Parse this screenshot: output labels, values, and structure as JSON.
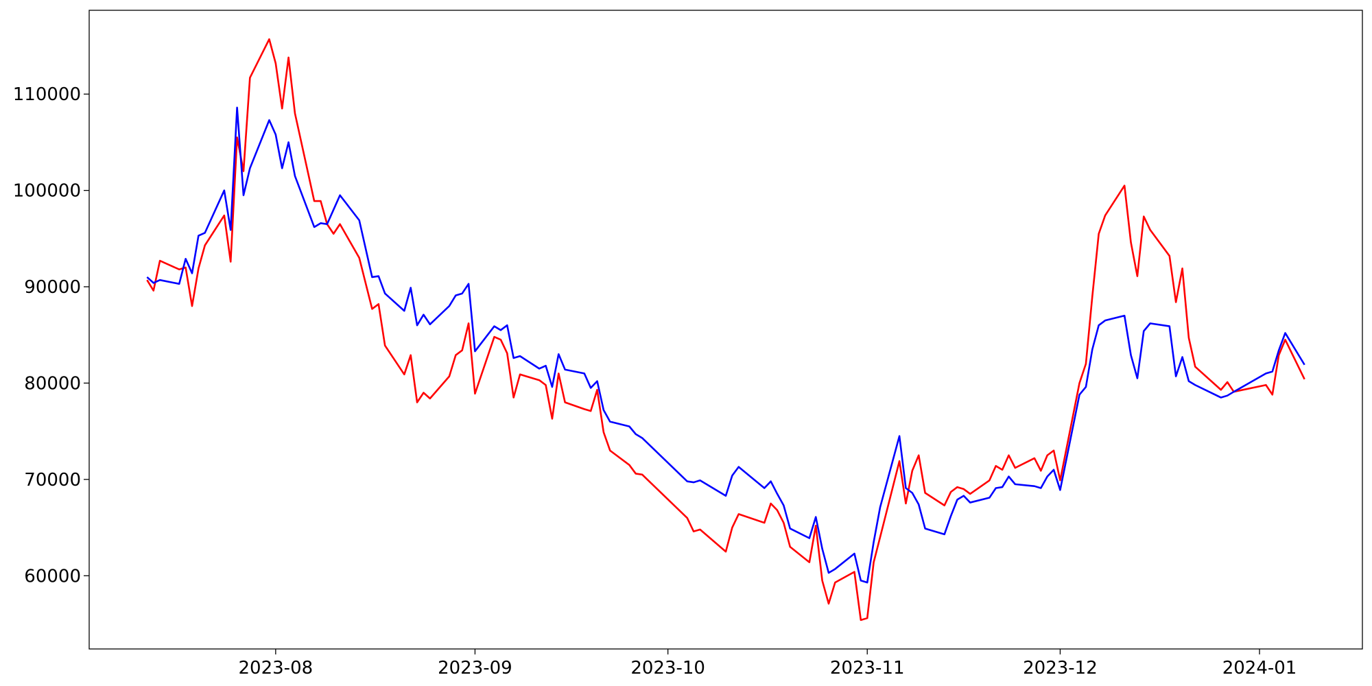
{
  "chart_data": {
    "type": "line",
    "x": [
      "2023-07-12",
      "2023-07-13",
      "2023-07-14",
      "2023-07-17",
      "2023-07-18",
      "2023-07-19",
      "2023-07-20",
      "2023-07-21",
      "2023-07-24",
      "2023-07-25",
      "2023-07-26",
      "2023-07-27",
      "2023-07-28",
      "2023-07-31",
      "2023-08-01",
      "2023-08-02",
      "2023-08-03",
      "2023-08-04",
      "2023-08-07",
      "2023-08-08",
      "2023-08-09",
      "2023-08-10",
      "2023-08-11",
      "2023-08-14",
      "2023-08-16",
      "2023-08-17",
      "2023-08-18",
      "2023-08-21",
      "2023-08-22",
      "2023-08-23",
      "2023-08-24",
      "2023-08-25",
      "2023-08-28",
      "2023-08-29",
      "2023-08-30",
      "2023-08-31",
      "2023-09-01",
      "2023-09-04",
      "2023-09-05",
      "2023-09-06",
      "2023-09-07",
      "2023-09-08",
      "2023-09-11",
      "2023-09-12",
      "2023-09-13",
      "2023-09-14",
      "2023-09-15",
      "2023-09-18",
      "2023-09-19",
      "2023-09-20",
      "2023-09-21",
      "2023-09-22",
      "2023-09-25",
      "2023-09-26",
      "2023-09-27",
      "2023-10-04",
      "2023-10-05",
      "2023-10-06",
      "2023-10-10",
      "2023-10-11",
      "2023-10-12",
      "2023-10-16",
      "2023-10-17",
      "2023-10-18",
      "2023-10-19",
      "2023-10-20",
      "2023-10-23",
      "2023-10-24",
      "2023-10-25",
      "2023-10-26",
      "2023-10-27",
      "2023-10-30",
      "2023-10-31",
      "2023-11-01",
      "2023-11-02",
      "2023-11-03",
      "2023-11-06",
      "2023-11-07",
      "2023-11-08",
      "2023-11-09",
      "2023-11-10",
      "2023-11-13",
      "2023-11-14",
      "2023-11-15",
      "2023-11-16",
      "2023-11-17",
      "2023-11-20",
      "2023-11-21",
      "2023-11-22",
      "2023-11-23",
      "2023-11-24",
      "2023-11-27",
      "2023-11-28",
      "2023-11-29",
      "2023-11-30",
      "2023-12-01",
      "2023-12-04",
      "2023-12-05",
      "2023-12-06",
      "2023-12-07",
      "2023-12-08",
      "2023-12-11",
      "2023-12-12",
      "2023-12-13",
      "2023-12-14",
      "2023-12-15",
      "2023-12-18",
      "2023-12-19",
      "2023-12-20",
      "2023-12-21",
      "2023-12-22",
      "2023-12-26",
      "2023-12-27",
      "2023-12-28",
      "2024-01-02",
      "2024-01-03",
      "2024-01-04",
      "2024-01-05",
      "2024-01-08"
    ],
    "series": [
      {
        "color": "#0000ff",
        "values": [
          91000,
          90400,
          90700,
          90300,
          92900,
          91400,
          95300,
          95600,
          100000,
          95900,
          108600,
          99500,
          102300,
          107300,
          105800,
          102300,
          105000,
          101500,
          96200,
          96600,
          96500,
          98000,
          99500,
          96900,
          91000,
          91100,
          89300,
          87500,
          89900,
          86000,
          87100,
          86100,
          88000,
          89100,
          89300,
          90300,
          83300,
          85900,
          85500,
          86000,
          82600,
          82800,
          81500,
          81800,
          79600,
          83000,
          81400,
          81000,
          79500,
          80200,
          77200,
          76000,
          75500,
          74700,
          74300,
          69800,
          69700,
          69900,
          68300,
          70400,
          71300,
          69100,
          69800,
          68500,
          67300,
          64900,
          63900,
          66100,
          62800,
          60300,
          60700,
          62300,
          59500,
          59300,
          63500,
          67100,
          74500,
          69100,
          68600,
          67400,
          64900,
          64300,
          66200,
          67900,
          68300,
          67600,
          68100,
          69100,
          69200,
          70300,
          69500,
          69300,
          69100,
          70300,
          71000,
          68900,
          78800,
          79600,
          83500,
          86000,
          86500,
          87000,
          82900,
          80500,
          85400,
          86200,
          85900,
          80700,
          82700,
          80200,
          79800,
          78500,
          78700,
          79100,
          81000,
          81200,
          83400,
          85200,
          81900
        ]
      },
      {
        "color": "#ff0000",
        "values": [
          90700,
          89600,
          92700,
          91800,
          92000,
          88000,
          91900,
          94300,
          97400,
          92600,
          105500,
          102000,
          111700,
          115700,
          113200,
          108500,
          113800,
          108000,
          98900,
          98900,
          96500,
          95500,
          96500,
          93000,
          87700,
          88200,
          83900,
          80900,
          82900,
          78000,
          79000,
          78400,
          80700,
          82900,
          83400,
          86200,
          78900,
          84800,
          84500,
          83100,
          78500,
          80900,
          80300,
          79800,
          76300,
          81000,
          78000,
          77300,
          77100,
          79300,
          74900,
          73000,
          71500,
          70600,
          70500,
          66000,
          64600,
          64800,
          62500,
          65000,
          66400,
          65500,
          67500,
          66800,
          65500,
          63000,
          61400,
          65200,
          59500,
          57100,
          59300,
          60400,
          55400,
          55600,
          61400,
          64000,
          71900,
          67500,
          70900,
          72500,
          68600,
          67300,
          68700,
          69200,
          69000,
          68500,
          69900,
          71400,
          71000,
          72500,
          71200,
          72200,
          70900,
          72500,
          73000,
          69900,
          80000,
          82000,
          89000,
          95500,
          97400,
          100500,
          94600,
          91100,
          97300,
          95900,
          93200,
          88400,
          91900,
          84700,
          81700,
          79300,
          80100,
          79100,
          79800,
          78800,
          82900,
          84500,
          80400
        ]
      }
    ],
    "xlim": [
      "2023-07-03",
      "2024-01-17"
    ],
    "xticks": [
      {
        "value": "2023-08-01",
        "label": "2023-08"
      },
      {
        "value": "2023-09-01",
        "label": "2023-09"
      },
      {
        "value": "2023-10-01",
        "label": "2023-10"
      },
      {
        "value": "2023-11-01",
        "label": "2023-11"
      },
      {
        "value": "2023-12-01",
        "label": "2023-12"
      },
      {
        "value": "2024-01-01",
        "label": "2024-01"
      }
    ],
    "ylim": [
      52400,
      118700
    ],
    "yticks": [
      60000,
      70000,
      80000,
      90000,
      100000,
      110000
    ]
  }
}
